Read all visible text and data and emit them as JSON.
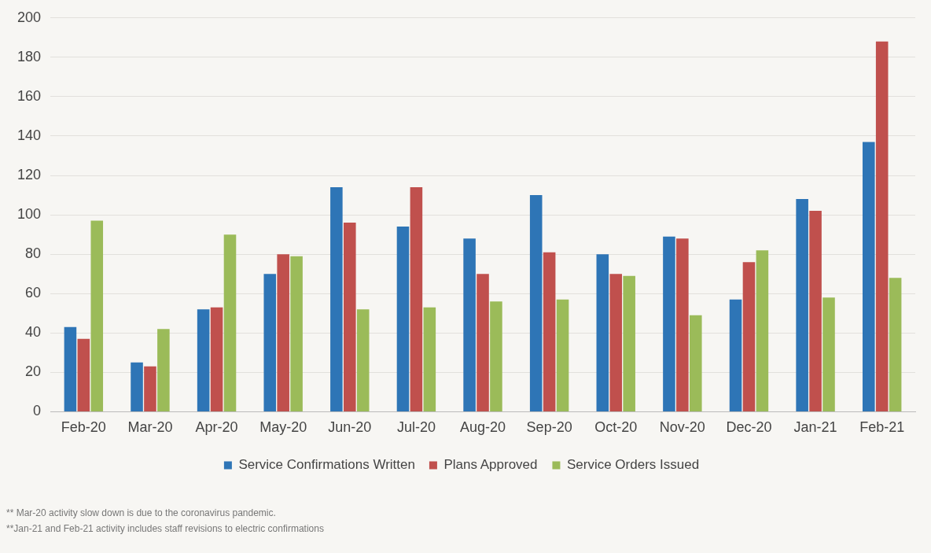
{
  "chart_data": {
    "type": "bar",
    "categories": [
      "Feb-20",
      "Mar-20",
      "Apr-20",
      "May-20",
      "Jun-20",
      "Jul-20",
      "Aug-20",
      "Sep-20",
      "Oct-20",
      "Nov-20",
      "Dec-20",
      "Jan-21",
      "Feb-21"
    ],
    "series": [
      {
        "name": "Service Confirmations Written",
        "color": "#2e75b6",
        "values": [
          43,
          25,
          52,
          70,
          114,
          94,
          88,
          110,
          80,
          89,
          57,
          108,
          137
        ]
      },
      {
        "name": "Plans Approved",
        "color": "#c0504d",
        "values": [
          37,
          23,
          53,
          80,
          96,
          114,
          70,
          81,
          70,
          88,
          76,
          102,
          188
        ]
      },
      {
        "name": "Service Orders Issued",
        "color": "#9bbb59",
        "values": [
          97,
          42,
          90,
          79,
          52,
          53,
          56,
          57,
          69,
          49,
          82,
          58,
          68
        ]
      }
    ],
    "ylim": [
      0,
      200
    ],
    "yticks": [
      0,
      20,
      40,
      60,
      80,
      100,
      120,
      140,
      160,
      180,
      200
    ],
    "grid": "y",
    "legend": "bottom",
    "annotations": [
      "** Mar-20 activity slow down is due to the coronavirus pandemic.",
      "**Jan-21 and Feb-21 activity includes staff revisions to electric confirmations"
    ]
  }
}
